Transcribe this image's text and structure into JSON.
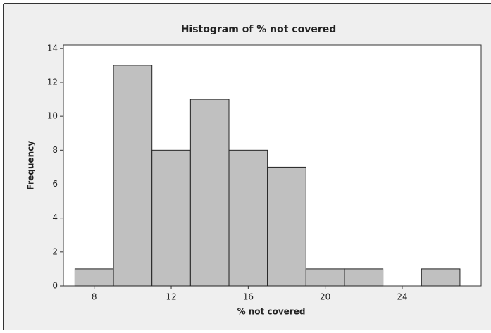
{
  "chart_data": {
    "type": "histogram",
    "title": "Histogram of % not covered",
    "x_label": "% not covered",
    "y_label": "Frequency",
    "bins": [
      7,
      9,
      11,
      13,
      15,
      17,
      19,
      21,
      23,
      25,
      27
    ],
    "values": [
      1,
      13,
      8,
      11,
      8,
      7,
      1,
      1,
      0,
      1
    ],
    "color": "#c0c0c0",
    "xlim": [
      6.4,
      28.1
    ],
    "xticks": [
      8,
      12,
      16,
      20,
      24
    ],
    "ylim": [
      0,
      14.2
    ],
    "yticks": [
      0,
      2,
      4,
      6,
      8,
      10,
      12,
      14
    ]
  }
}
